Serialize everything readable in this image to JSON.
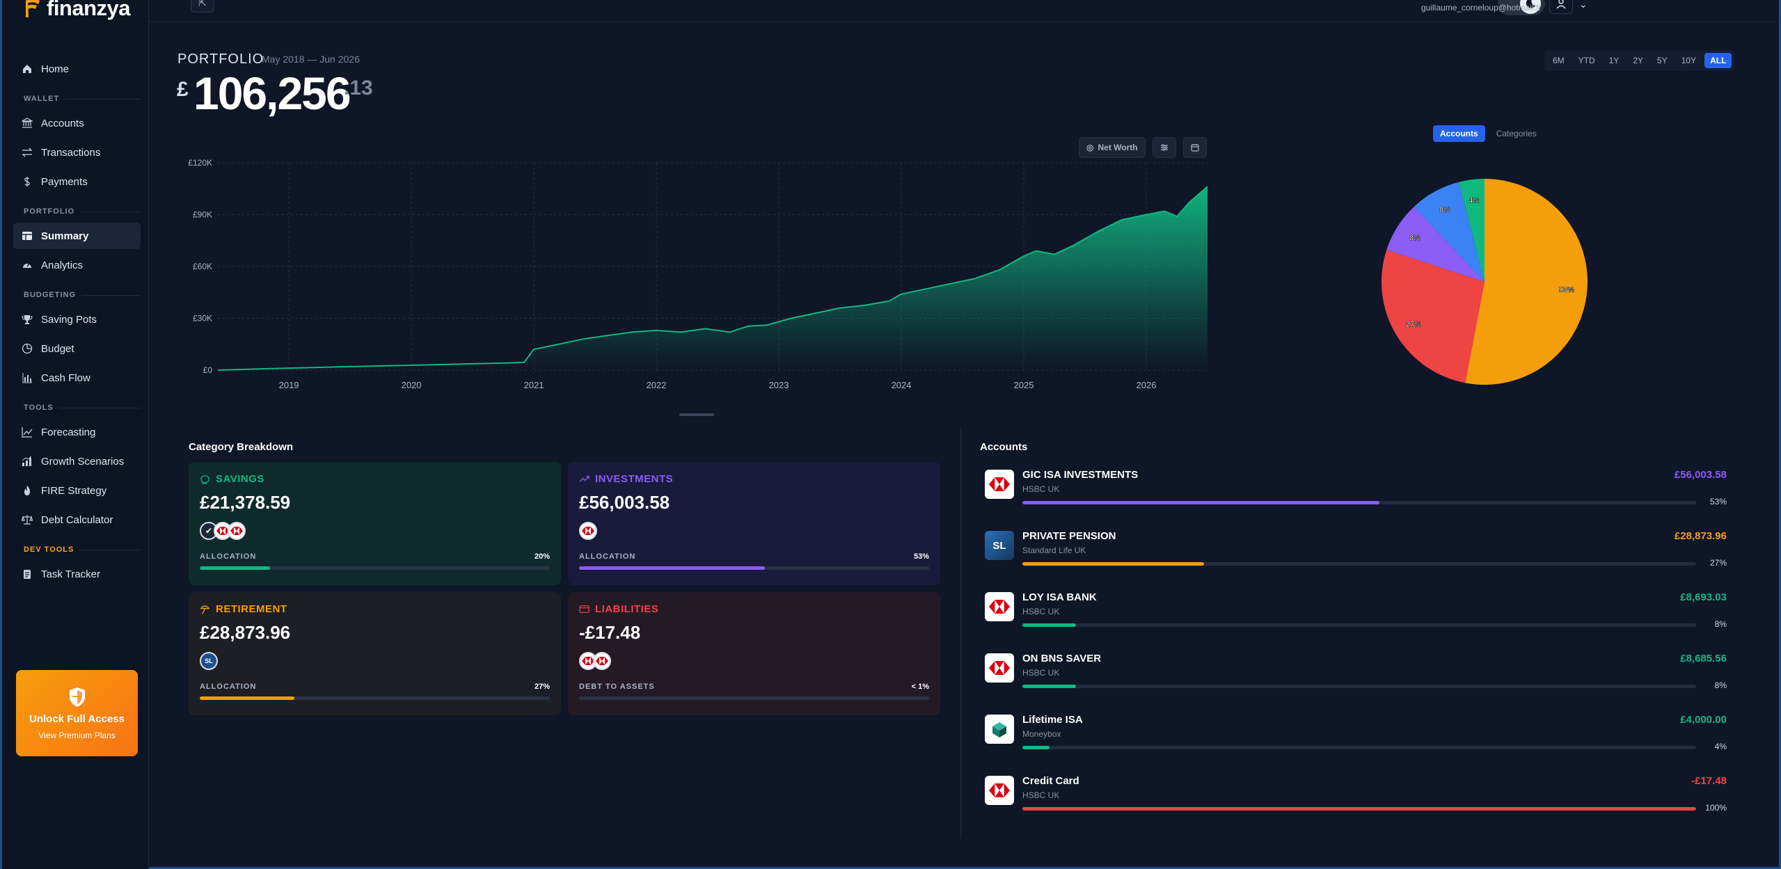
{
  "app": {
    "brand": "finanzya"
  },
  "sidebar": {
    "items": [
      {
        "label": "Home",
        "icon": "home-icon"
      },
      {
        "label": "WALLET",
        "section": true
      },
      {
        "label": "Accounts",
        "icon": "bank-icon"
      },
      {
        "label": "Transactions",
        "icon": "transfer-icon"
      },
      {
        "label": "Payments",
        "icon": "dollar-icon"
      },
      {
        "label": "PORTFOLIO",
        "section": true
      },
      {
        "label": "Summary",
        "icon": "table-icon",
        "active": true
      },
      {
        "label": "Analytics",
        "icon": "gauge-icon"
      },
      {
        "label": "BUDGETING",
        "section": true
      },
      {
        "label": "Saving Pots",
        "icon": "trophy-icon"
      },
      {
        "label": "Budget",
        "icon": "pie-icon"
      },
      {
        "label": "Cash Flow",
        "icon": "bars-icon"
      },
      {
        "label": "TOOLS",
        "section": true
      },
      {
        "label": "Forecasting",
        "icon": "trend-icon"
      },
      {
        "label": "Growth Scenarios",
        "icon": "growth-icon"
      },
      {
        "label": "FIRE Strategy",
        "icon": "fire-icon"
      },
      {
        "label": "Debt Calculator",
        "icon": "scale-icon"
      },
      {
        "label": "DEV TOOLS",
        "section": true
      },
      {
        "label": "Task Tracker",
        "icon": "clipboard-icon"
      }
    ],
    "upgrade": {
      "title": "Unlock Full Access",
      "link": "View Premium Plans"
    }
  },
  "header": {
    "user_email": "guillaume_corneloup@hotmail.fr"
  },
  "portfolio": {
    "label": "PORTFOLIO",
    "date_range": "May 2018 — Jun 2026",
    "currency": "£",
    "total_main": "106,256",
    "total_pence": ".13",
    "ranges": [
      "6M",
      "YTD",
      "1Y",
      "2Y",
      "5Y",
      "10Y",
      "ALL"
    ],
    "active_range": "ALL",
    "net_worth_button": "Net Worth"
  },
  "chart_data": [
    {
      "type": "area",
      "title": "",
      "xlabel": "",
      "ylabel": "",
      "x_ticks": [
        "2019",
        "2020",
        "2021",
        "2022",
        "2023",
        "2024",
        "2025",
        "2026"
      ],
      "y_ticks": [
        "£0",
        "£30K",
        "£60K",
        "£90K",
        "£120K"
      ],
      "ylim": [
        0,
        120000
      ],
      "xlim": [
        2018.42,
        2026.5
      ],
      "grid": true,
      "color": "#10b981",
      "x": [
        2018.42,
        2018.8,
        2019.2,
        2019.6,
        2020.0,
        2020.4,
        2020.8,
        2020.92,
        2021.0,
        2021.2,
        2021.4,
        2021.6,
        2021.8,
        2022.0,
        2022.2,
        2022.4,
        2022.6,
        2022.75,
        2022.9,
        2023.1,
        2023.3,
        2023.5,
        2023.7,
        2023.9,
        2024.0,
        2024.2,
        2024.4,
        2024.6,
        2024.8,
        2025.0,
        2025.1,
        2025.25,
        2025.4,
        2025.6,
        2025.8,
        2026.0,
        2026.15,
        2026.25,
        2026.35,
        2026.5
      ],
      "values": [
        0,
        800,
        1500,
        2200,
        2800,
        3500,
        4200,
        4500,
        12000,
        15000,
        18000,
        20000,
        22000,
        23000,
        22000,
        24000,
        22000,
        25500,
        26000,
        30000,
        33000,
        36000,
        37500,
        40000,
        44000,
        47000,
        50000,
        53000,
        58000,
        66000,
        69000,
        67000,
        72000,
        80000,
        87000,
        90000,
        92000,
        89000,
        97000,
        106256
      ]
    },
    {
      "type": "pie",
      "title": "",
      "tabs": [
        "Accounts",
        "Categories"
      ],
      "active_tab": "Accounts",
      "labels": [
        "GIC ISA INVESTMENTS",
        "PRIVATE PENSION",
        "LOY ISA BANK",
        "ON BNS SAVER",
        "Lifetime ISA"
      ],
      "values": [
        53,
        27,
        8,
        8,
        4
      ],
      "slice_labels": [
        "53%",
        "27%",
        "8%",
        "8%",
        "4%"
      ],
      "colors": [
        "#f59e0b",
        "#ef4444",
        "#8b5cf6",
        "#3b82f6",
        "#10b981"
      ]
    }
  ],
  "categories": {
    "title": "Category Breakdown",
    "cards": [
      {
        "name": "SAVINGS",
        "value": "£21,378.59",
        "alloc_label": "ALLOCATION",
        "pct": "20%",
        "fraction": 0.2,
        "color": "#10b981",
        "bg": "#0f2a2b",
        "icon": "piggy-icon"
      },
      {
        "name": "INVESTMENTS",
        "value": "£56,003.58",
        "alloc_label": "ALLOCATION",
        "pct": "53%",
        "fraction": 0.53,
        "color": "#8b5cf6",
        "bg": "#1a1a3b",
        "icon": "trend-icon"
      },
      {
        "name": "RETIREMENT",
        "value": "£28,873.96",
        "alloc_label": "ALLOCATION",
        "pct": "27%",
        "fraction": 0.27,
        "color": "#f59e0b",
        "bg": "#1d1f24",
        "icon": "beach-icon"
      },
      {
        "name": "LIABILITIES",
        "value": "-£17.48",
        "alloc_label": "DEBT TO ASSETS",
        "pct": "< 1%",
        "fraction": 0.0,
        "color": "#ef4444",
        "bg": "#241a26",
        "icon": "card-icon"
      }
    ]
  },
  "accounts": {
    "title": "Accounts",
    "items": [
      {
        "name": "GIC ISA INVESTMENTS",
        "bank": "HSBC UK",
        "amount": "£56,003.58",
        "pct": "53%",
        "fraction": 0.53,
        "color": "#8b5cf6",
        "logo": "hsbc-logo-icon"
      },
      {
        "name": "PRIVATE PENSION",
        "bank": "Standard Life UK",
        "amount": "£28,873.96",
        "pct": "27%",
        "fraction": 0.27,
        "color": "#f59e0b",
        "logo": "standard-life-logo-icon",
        "logo_text": "SL"
      },
      {
        "name": "LOY ISA BANK",
        "bank": "HSBC UK",
        "amount": "£8,693.03",
        "pct": "8%",
        "fraction": 0.08,
        "color": "#10b981",
        "logo": "hsbc-logo-icon"
      },
      {
        "name": "ON BNS SAVER",
        "bank": "HSBC UK",
        "amount": "£8,685.56",
        "pct": "8%",
        "fraction": 0.08,
        "color": "#10b981",
        "logo": "hsbc-logo-icon"
      },
      {
        "name": "Lifetime ISA",
        "bank": "Moneybox",
        "amount": "£4,000.00",
        "pct": "4%",
        "fraction": 0.04,
        "color": "#10b981",
        "logo": "moneybox-logo-icon"
      },
      {
        "name": "Credit Card",
        "bank": "HSBC UK",
        "amount": "-£17.48",
        "pct": "100%",
        "fraction": 1.0,
        "color": "#ef4444",
        "logo": "hsbc-logo-icon"
      }
    ]
  }
}
